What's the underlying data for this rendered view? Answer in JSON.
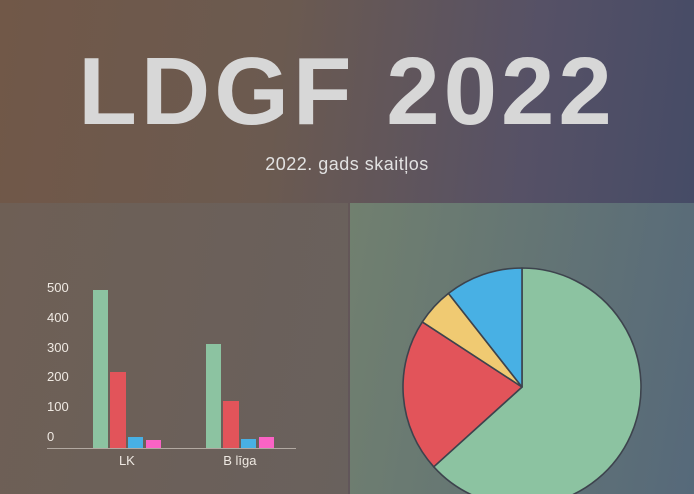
{
  "header": {
    "title": "LDGF 2022",
    "subtitle": "2022. gads skaitļos"
  },
  "theme": {
    "background_gradient": [
      "#715848",
      "#424a66"
    ],
    "left_panel_gradient": [
      "#6e5f55",
      "#69615d"
    ],
    "right_panel_gradient": [
      "#71806f",
      "#56697a"
    ],
    "title_color": "#d7d7d7",
    "subtitle_color": "#e2e2e2",
    "axis_text_color": "#efe9e2",
    "axis_line_color": "#c9c2ba",
    "pie_outline_color": "#3d434d"
  },
  "chart_data": [
    {
      "type": "bar",
      "title": "",
      "categories": [
        "LK",
        "B līga"
      ],
      "series": [
        {
          "name": "green-series",
          "color": "#8cc3a1",
          "values": [
            500,
            330
          ]
        },
        {
          "name": "red-series",
          "color": "#e2545a",
          "values": [
            240,
            150
          ]
        },
        {
          "name": "blue-series",
          "color": "#48b0e4",
          "values": [
            35,
            30
          ]
        },
        {
          "name": "magenta-series",
          "color": "#fa63c5",
          "values": [
            25,
            35
          ]
        }
      ],
      "yticks": [
        0,
        100,
        200,
        300,
        400,
        500
      ],
      "ylim": [
        0,
        500
      ],
      "grid": false,
      "legend": false
    },
    {
      "type": "pie",
      "title": "",
      "slices": [
        {
          "name": "green-slice",
          "color": "#8cc3a1",
          "percent": 63.3
        },
        {
          "name": "red-slice",
          "color": "#e2545a",
          "percent": 20.9
        },
        {
          "name": "yellow-slice",
          "color": "#f0ca72",
          "percent": 5.2
        },
        {
          "name": "blue-slice",
          "color": "#48b0e4",
          "percent": 10.6
        }
      ],
      "start_angle_deg": 0,
      "direction": "clockwise",
      "legend": false
    }
  ]
}
